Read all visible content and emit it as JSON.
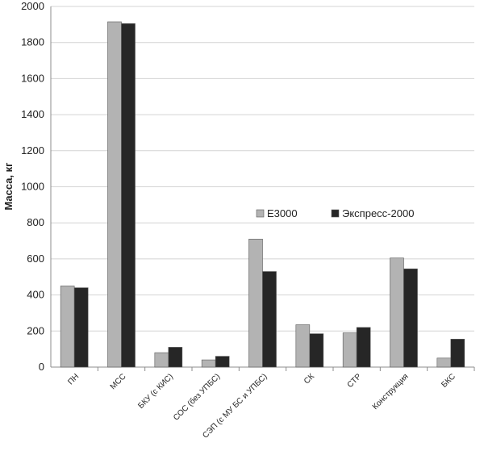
{
  "chart_data": {
    "type": "bar",
    "title": "",
    "xlabel": "",
    "ylabel": "Масса, кг",
    "ylim": [
      0,
      2000
    ],
    "yticks": [
      0,
      200,
      400,
      600,
      800,
      1000,
      1200,
      1400,
      1600,
      1800,
      2000
    ],
    "grid": true,
    "legend_position": "center-right",
    "categories": [
      "ПН",
      "МСС",
      "БКУ (с КИС)",
      "СОС (без УПБС)",
      "СЭП (с МУ БС и УПБС)",
      "СК",
      "СТР",
      "Конструкция",
      "БКС"
    ],
    "series": [
      {
        "name": "E3000",
        "color": "#b3b3b3",
        "values": [
          450,
          1915,
          80,
          40,
          710,
          235,
          190,
          605,
          50
        ]
      },
      {
        "name": "Экспресс-2000",
        "color": "#262626",
        "values": [
          440,
          1905,
          110,
          60,
          530,
          185,
          220,
          545,
          155
        ]
      }
    ]
  }
}
